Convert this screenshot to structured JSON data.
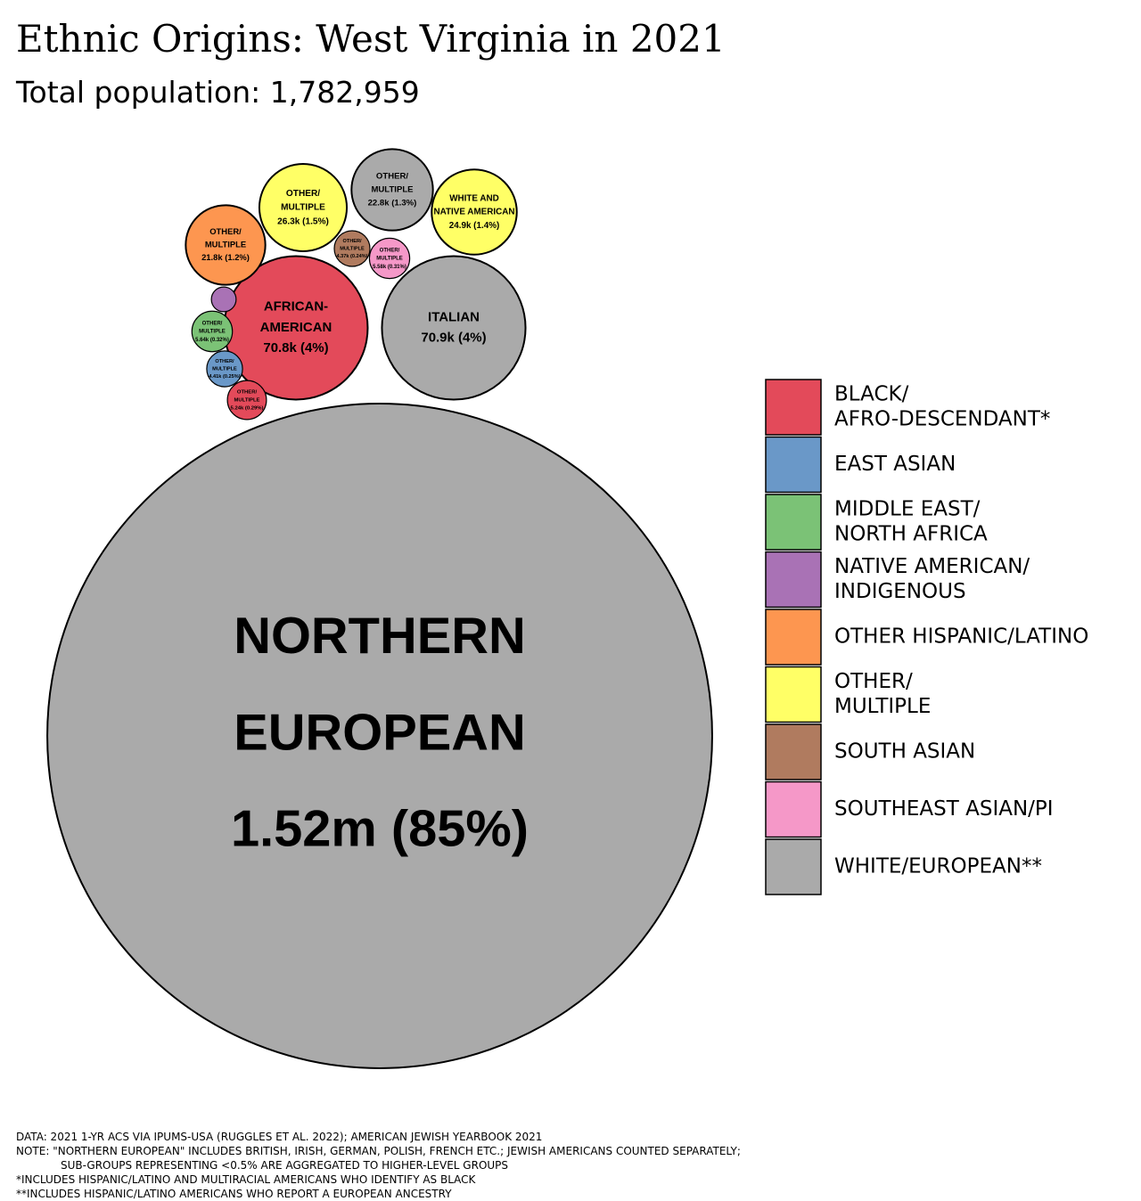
{
  "chart_data": {
    "type": "bubble",
    "title": "Ethnic Origins: West Virginia in 2021",
    "subtitle": "Total population: 1,782,959",
    "bubbles": [
      {
        "label": [
          "NORTHERN",
          "EUROPEAN"
        ],
        "value": 1520000,
        "value_label": "1.52m (85%)",
        "color": "#aaaaaa"
      },
      {
        "label": [
          "AFRICAN-",
          "AMERICAN"
        ],
        "value": 70800,
        "value_label": "70.8k (4%)",
        "color": "#e34a5a"
      },
      {
        "label": [
          "ITALIAN"
        ],
        "value": 70900,
        "value_label": "70.9k (4%)",
        "color": "#aaaaaa"
      },
      {
        "label": [
          "OTHER/",
          "MULTIPLE"
        ],
        "value": 26300,
        "value_label": "26.3k (1.5%)",
        "color": "#ffff66"
      },
      {
        "label": [
          "OTHER/",
          "MULTIPLE"
        ],
        "value": 22800,
        "value_label": "22.8k (1.3%)",
        "color": "#aaaaaa"
      },
      {
        "label": [
          "WHITE AND",
          "NATIVE AMERICAN"
        ],
        "value": 24900,
        "value_label": "24.9k (1.4%)",
        "color": "#ffff66"
      },
      {
        "label": [
          "OTHER/",
          "MULTIPLE"
        ],
        "value": 21800,
        "value_label": "21.8k (1.2%)",
        "color": "#fd9650"
      },
      {
        "label": [
          "OTHER/",
          "MULTIPLE"
        ],
        "value": 4370,
        "value_label": "4.37k (0.24%)",
        "color": "#b07b5f"
      },
      {
        "label": [
          "OTHER/",
          "MULTIPLE"
        ],
        "value": 5580,
        "value_label": "5.58k (0.31%)",
        "color": "#f598c8"
      },
      {
        "label": null,
        "value": 2100,
        "value_label": null,
        "color": "#a972b5"
      },
      {
        "label": [
          "OTHER/",
          "MULTIPLE"
        ],
        "value": 5640,
        "value_label": "5.64k (0.32%)",
        "color": "#7bc276"
      },
      {
        "label": [
          "OTHER/",
          "MULTIPLE"
        ],
        "value": 4410,
        "value_label": "4.41k (0.25%)",
        "color": "#6a98c8"
      },
      {
        "label": [
          "OTHER/",
          "MULTIPLE"
        ],
        "value": 5240,
        "value_label": "5.24k (0.29%)",
        "color": "#e34a5a"
      }
    ],
    "legend": [
      {
        "name": [
          "BLACK/",
          "AFRO-DESCENDANT*"
        ],
        "color": "#e34a5a"
      },
      {
        "name": [
          "EAST ASIAN"
        ],
        "color": "#6a98c8"
      },
      {
        "name": [
          "MIDDLE EAST/",
          "NORTH AFRICA"
        ],
        "color": "#7bc276"
      },
      {
        "name": [
          "NATIVE AMERICAN/",
          "INDIGENOUS"
        ],
        "color": "#a972b5"
      },
      {
        "name": [
          "OTHER HISPANIC/LATINO"
        ],
        "color": "#fd9650"
      },
      {
        "name": [
          "OTHER/",
          "MULTIPLE"
        ],
        "color": "#ffff66"
      },
      {
        "name": [
          "SOUTH ASIAN"
        ],
        "color": "#b07b5f"
      },
      {
        "name": [
          "SOUTHEAST ASIAN/PI"
        ],
        "color": "#f598c8"
      },
      {
        "name": [
          "WHITE/EUROPEAN**"
        ],
        "color": "#aaaaaa"
      }
    ],
    "notes": [
      "DATA: 2021 1-YR ACS VIA IPUMS-USA (RUGGLES ET AL. 2022); AMERICAN JEWISH YEARBOOK 2021",
      "NOTE: \"NORTHERN EUROPEAN\" INCLUDES BRITISH, IRISH, GERMAN, POLISH, FRENCH ETC.; JEWISH AMERICANS COUNTED SEPARATELY;",
      "SUB-GROUPS REPRESENTING <0.5% ARE AGGREGATED TO HIGHER-LEVEL GROUPS",
      "*INCLUDES HISPANIC/LATINO AND MULTIRACIAL AMERICANS WHO IDENTIFY AS BLACK",
      "**INCLUDES HISPANIC/LATINO AMERICANS WHO REPORT A EUROPEAN ANCESTRY"
    ]
  }
}
